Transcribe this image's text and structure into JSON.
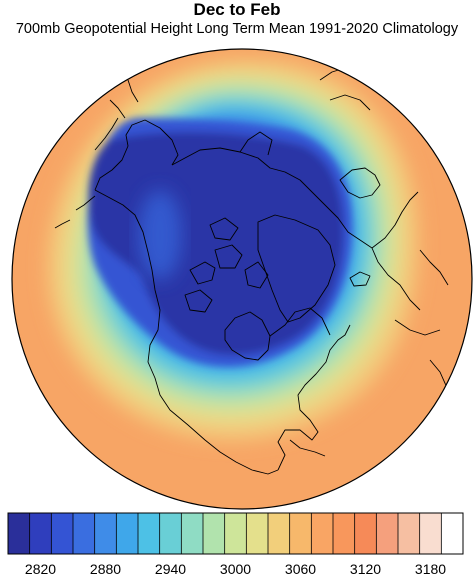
{
  "header": {
    "title": "Dec to Feb",
    "subtitle": "700mb Geopotential Height Long Term Mean 1991-2020 Climatology"
  },
  "map": {
    "projection": "north-polar-orthographic",
    "features": [
      "coastlines",
      "sea-ice-arctic",
      "continents"
    ],
    "field": "geopotential-height-700mb"
  },
  "colorbar": {
    "levels": [
      2800,
      2820,
      2840,
      2860,
      2880,
      2900,
      2920,
      2940,
      2960,
      2980,
      3000,
      3020,
      3040,
      3060,
      3080,
      3100,
      3120,
      3140,
      3160,
      3180,
      3200
    ],
    "colors": [
      "#2a2f9a",
      "#2f3ebd",
      "#3454d4",
      "#3a6ee0",
      "#3f8ce8",
      "#3fa7ea",
      "#4dc1e6",
      "#69cfd6",
      "#8fdcc4",
      "#b1e3ad",
      "#cee59a",
      "#e4e08c",
      "#f2cf7b",
      "#f7b86b",
      "#f9a564",
      "#f8975c",
      "#f68a58",
      "#f5a07d",
      "#f6bfa2",
      "#f9ddd0",
      "#ffffff"
    ],
    "tick_labels": [
      "2820",
      "2880",
      "2940",
      "3000",
      "3060",
      "3120",
      "3180"
    ]
  }
}
